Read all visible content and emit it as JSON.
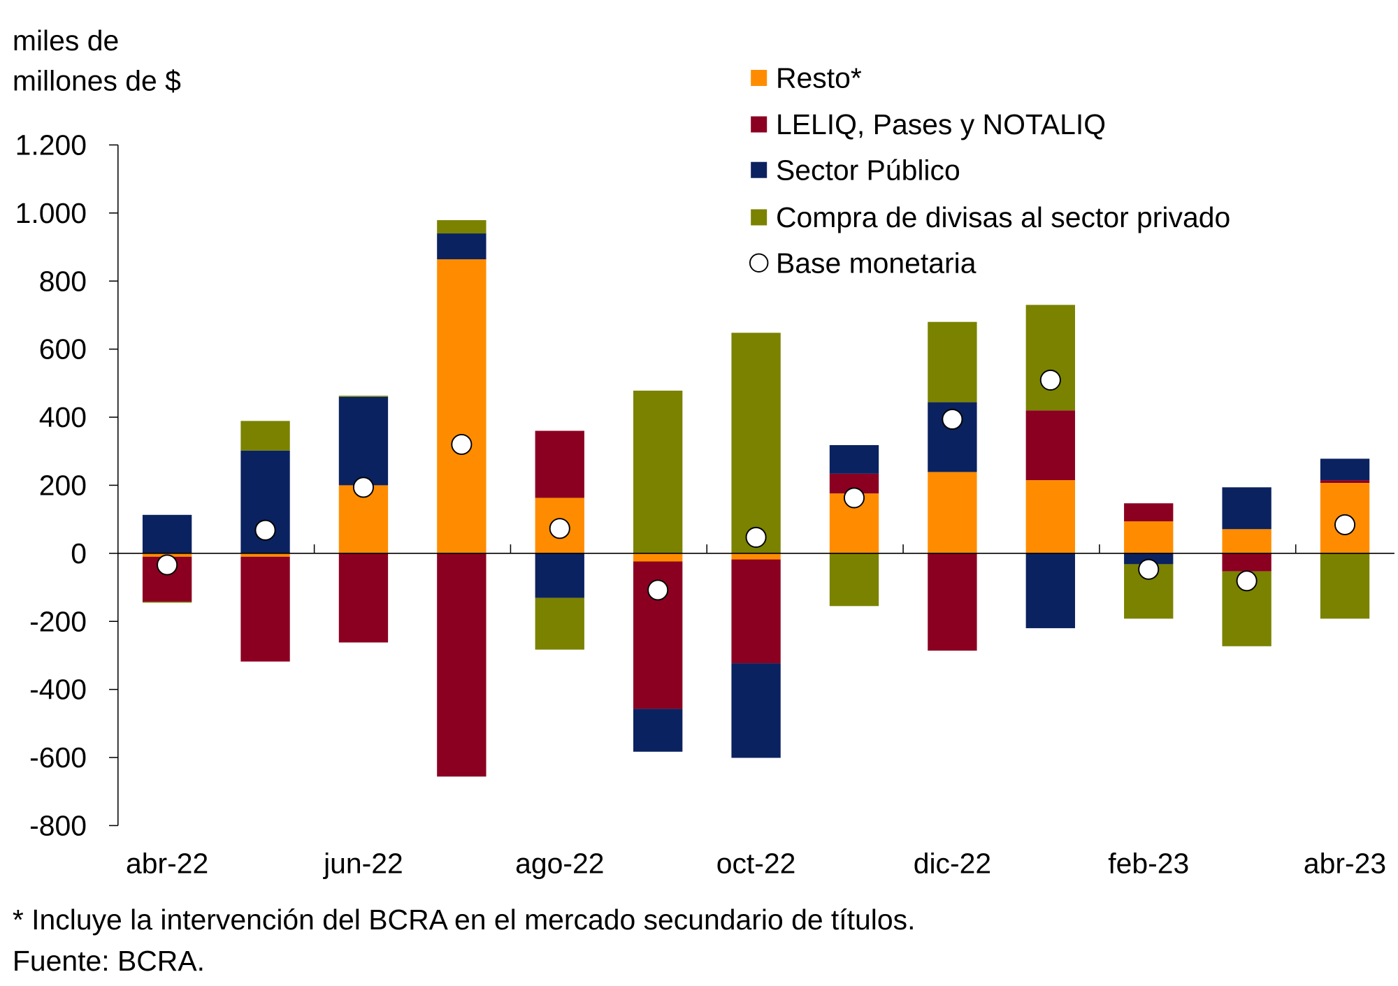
{
  "chart_data": {
    "type": "bar",
    "stacked": true,
    "ylabel": "miles de millones de $",
    "ylabel_lines": [
      "miles de",
      "millones de $"
    ],
    "ylim": [
      -800,
      1200
    ],
    "yticks": [
      1200,
      1000,
      800,
      600,
      400,
      200,
      0,
      -200,
      -400,
      -600,
      -800
    ],
    "ytick_labels": [
      "1.200",
      "1.000",
      "800",
      "600",
      "400",
      "200",
      "0",
      "-200",
      "-400",
      "-600",
      "-800"
    ],
    "grid": false,
    "legend_position": "top-right",
    "categories": [
      "abr-22",
      "may-22",
      "jun-22",
      "jul-22",
      "ago-22",
      "sep-22",
      "oct-22",
      "nov-22",
      "dic-22",
      "ene-23",
      "feb-23",
      "mar-23",
      "abr-23"
    ],
    "xtick_labels": [
      "abr-22",
      "jun-22",
      "ago-22",
      "oct-22",
      "dic-22",
      "feb-23",
      "abr-23"
    ],
    "series": [
      {
        "name": "Resto*",
        "color": "#FF8C00",
        "values": [
          -10,
          -10,
          200,
          864,
          163,
          -24,
          -18,
          176,
          239,
          215,
          94,
          71,
          207
        ]
      },
      {
        "name": "LELIQ, Pases y NOTALIQ",
        "color": "#8B0021",
        "values": [
          -132,
          -308,
          -262,
          -656,
          197,
          -433,
          -305,
          58,
          -286,
          205,
          53,
          -53,
          8
        ]
      },
      {
        "name": "Sector Público",
        "color": "#0B2260",
        "values": [
          113,
          302,
          260,
          76,
          -131,
          -126,
          -278,
          84,
          205,
          -220,
          -32,
          123,
          63
        ]
      },
      {
        "name": "Compra de divisas al sector privado",
        "color": "#7A8200",
        "values": [
          -3,
          87,
          3,
          39,
          -152,
          478,
          648,
          -155,
          236,
          310,
          -160,
          -220,
          -192
        ]
      }
    ],
    "points": {
      "name": "Base monetaria",
      "values": [
        -34,
        68,
        194,
        320,
        73,
        -108,
        47,
        163,
        394,
        509,
        -47,
        -81,
        84
      ]
    },
    "footnote": "* Incluye la intervención del BCRA en el mercado secundario de títulos.",
    "source": "Fuente: BCRA."
  }
}
